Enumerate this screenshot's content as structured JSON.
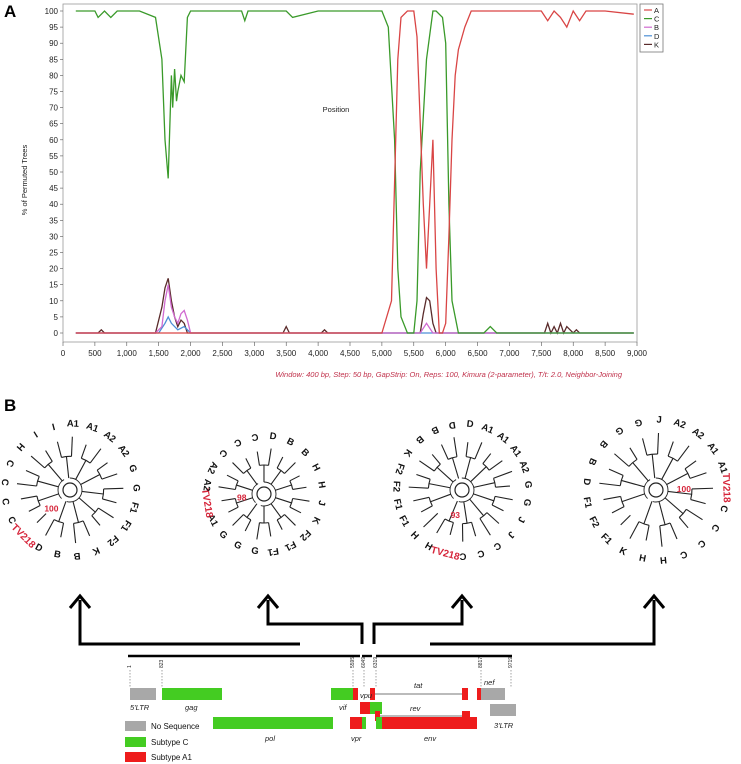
{
  "panel_a_label": "A",
  "panel_b_label": "B",
  "chart_data": {
    "type": "line",
    "ylabel": "% of Permuted Trees",
    "xlabel": "Position",
    "xlim": [
      0,
      9000
    ],
    "ylim": [
      0,
      100
    ],
    "x_ticks": [
      "0",
      "500",
      "1,000",
      "1,500",
      "2,000",
      "2,500",
      "3,000",
      "3,500",
      "4,000",
      "4,500",
      "5,000",
      "5,500",
      "6,000",
      "6,500",
      "7,000",
      "7,500",
      "8,000",
      "8,500",
      "9,000"
    ],
    "y_ticks": [
      "0",
      "5",
      "10",
      "15",
      "20",
      "25",
      "30",
      "35",
      "40",
      "45",
      "50",
      "55",
      "60",
      "65",
      "70",
      "75",
      "80",
      "85",
      "90",
      "95",
      "100"
    ],
    "legend_position": "top-right",
    "note": "Window: 400 bp, Step: 50 bp, GapStrip: On, Reps: 100, Kimura (2-parameter), T/t: 2.0, Neighbor-Joining",
    "series": [
      {
        "name": "A",
        "color": "#d94545",
        "x": [
          200,
          1500,
          1600,
          1650,
          1700,
          1800,
          5000,
          5150,
          5250,
          5300,
          5400,
          5450,
          5500,
          5550,
          5650,
          5700,
          5750,
          5800,
          5850,
          5900,
          5950,
          6000,
          6050,
          6100,
          6150,
          6200,
          6300,
          6400,
          6500,
          7000,
          7500,
          7600,
          7700,
          7800,
          7900,
          8000,
          8100,
          8200,
          8500,
          8950
        ],
        "y": [
          0,
          0,
          0,
          0,
          0,
          0,
          0,
          10,
          85,
          98,
          100,
          100,
          100,
          92,
          40,
          20,
          40,
          60,
          20,
          0,
          0,
          3,
          30,
          60,
          80,
          88,
          95,
          100,
          100,
          100,
          100,
          97,
          100,
          98,
          95,
          100,
          97,
          100,
          100,
          99
        ]
      },
      {
        "name": "C",
        "color": "#3a9a2a",
        "x": [
          200,
          500,
          550,
          650,
          750,
          850,
          1000,
          1200,
          1450,
          1550,
          1600,
          1650,
          1700,
          1720,
          1750,
          1780,
          1800,
          1850,
          1900,
          1950,
          2000,
          2500,
          2800,
          2850,
          2900,
          3500,
          3600,
          4000,
          4500,
          5000,
          5100,
          5200,
          5250,
          5300,
          5400,
          5500,
          5550,
          5600,
          5700,
          5800,
          5850,
          5950,
          6000,
          6050,
          6100,
          6200,
          6300,
          6500,
          6600,
          6700,
          6800,
          7000,
          7500,
          8000,
          8950
        ],
        "y": [
          100,
          100,
          98,
          100,
          98,
          100,
          100,
          100,
          98,
          85,
          60,
          48,
          80,
          70,
          82,
          72,
          75,
          80,
          78,
          98,
          100,
          100,
          100,
          97,
          100,
          100,
          98,
          100,
          100,
          100,
          95,
          60,
          20,
          5,
          0,
          0,
          10,
          50,
          85,
          100,
          100,
          98,
          90,
          40,
          10,
          0,
          0,
          0,
          0,
          2,
          0,
          0,
          0,
          0,
          0
        ]
      },
      {
        "name": "B",
        "color": "#d06ad0",
        "x": [
          200,
          1450,
          1550,
          1600,
          1650,
          1700,
          1750,
          1800,
          1850,
          1900,
          1950,
          2000,
          5600,
          5700,
          5800,
          8950
        ],
        "y": [
          0,
          0,
          2,
          10,
          15,
          8,
          5,
          3,
          6,
          7,
          4,
          0,
          0,
          3,
          0,
          0
        ]
      },
      {
        "name": "D",
        "color": "#4d8fd6",
        "x": [
          200,
          1500,
          1600,
          1650,
          1700,
          1800,
          1900,
          2000,
          8950
        ],
        "y": [
          0,
          0,
          3,
          5,
          3,
          1,
          2,
          0,
          0
        ]
      },
      {
        "name": "K",
        "color": "#5a2b2b",
        "x": [
          200,
          550,
          600,
          650,
          1450,
          1550,
          1600,
          1650,
          1700,
          1750,
          1800,
          1850,
          1900,
          1950,
          3450,
          3500,
          3550,
          4050,
          4100,
          4150,
          5600,
          5650,
          5700,
          5750,
          5800,
          5850,
          7500,
          7550,
          7600,
          7650,
          7700,
          7750,
          7800,
          7850,
          7900,
          8000,
          8050,
          8100,
          8950
        ],
        "y": [
          0,
          0,
          1,
          0,
          0,
          8,
          14,
          17,
          10,
          5,
          2,
          4,
          3,
          0,
          0,
          2,
          0,
          0,
          1,
          0,
          0,
          6,
          11,
          10,
          3,
          0,
          0,
          0,
          3,
          0,
          2,
          0,
          3,
          0,
          2,
          0,
          1,
          0,
          0
        ]
      }
    ]
  },
  "trees": [
    {
      "leaves": [
        "C",
        "C",
        "C",
        "C",
        "H",
        "I",
        "I",
        "A1",
        "A1",
        "A2",
        "A2",
        "G",
        "G",
        "F1",
        "F1",
        "F2",
        "K",
        "B",
        "B",
        "D",
        "TV218"
      ],
      "bootstrap": "100",
      "highlight_leaf": "TV218"
    },
    {
      "leaves": [
        "A1",
        "TV218",
        "A2",
        "A2",
        "C",
        "C",
        "C",
        "D",
        "B",
        "B",
        "H",
        "H",
        "J",
        "K",
        "F2",
        "F1",
        "F1",
        "G",
        "G",
        "G"
      ],
      "bootstrap": "98",
      "highlight_leaf": "TV218"
    },
    {
      "leaves": [
        "F1",
        "F1",
        "F2",
        "F2",
        "K",
        "B",
        "B",
        "D",
        "D",
        "A1",
        "A1",
        "A1",
        "A2",
        "G",
        "G",
        "J",
        "J",
        "C",
        "C",
        "C",
        "TV218",
        "H",
        "H"
      ],
      "bootstrap": "93",
      "highlight_leaf": "TV218"
    },
    {
      "leaves": [
        "F2",
        "F1",
        "D",
        "B",
        "B",
        "G",
        "G",
        "J",
        "A2",
        "A2",
        "A1",
        "A1",
        "TV218",
        "C",
        "C",
        "C",
        "C",
        "H",
        "H",
        "K",
        "F1"
      ],
      "bootstrap": "100",
      "highlight_leaf": "TV218"
    }
  ],
  "genome": {
    "positions": [
      "1",
      "823",
      "5595",
      "6049",
      "6319",
      "8817",
      "9719"
    ],
    "regions": [
      "5'LTR",
      "gag",
      "pol",
      "vif",
      "vpr",
      "vpu",
      "tat",
      "rev",
      "env",
      "nef",
      "3'LTR"
    ],
    "legend": [
      {
        "label": "No Sequence",
        "color": "#a8a8a8"
      },
      {
        "label": "Subtype C",
        "color": "#44cc22"
      },
      {
        "label": "Subtype A1",
        "color": "#ee1c1c"
      }
    ]
  }
}
